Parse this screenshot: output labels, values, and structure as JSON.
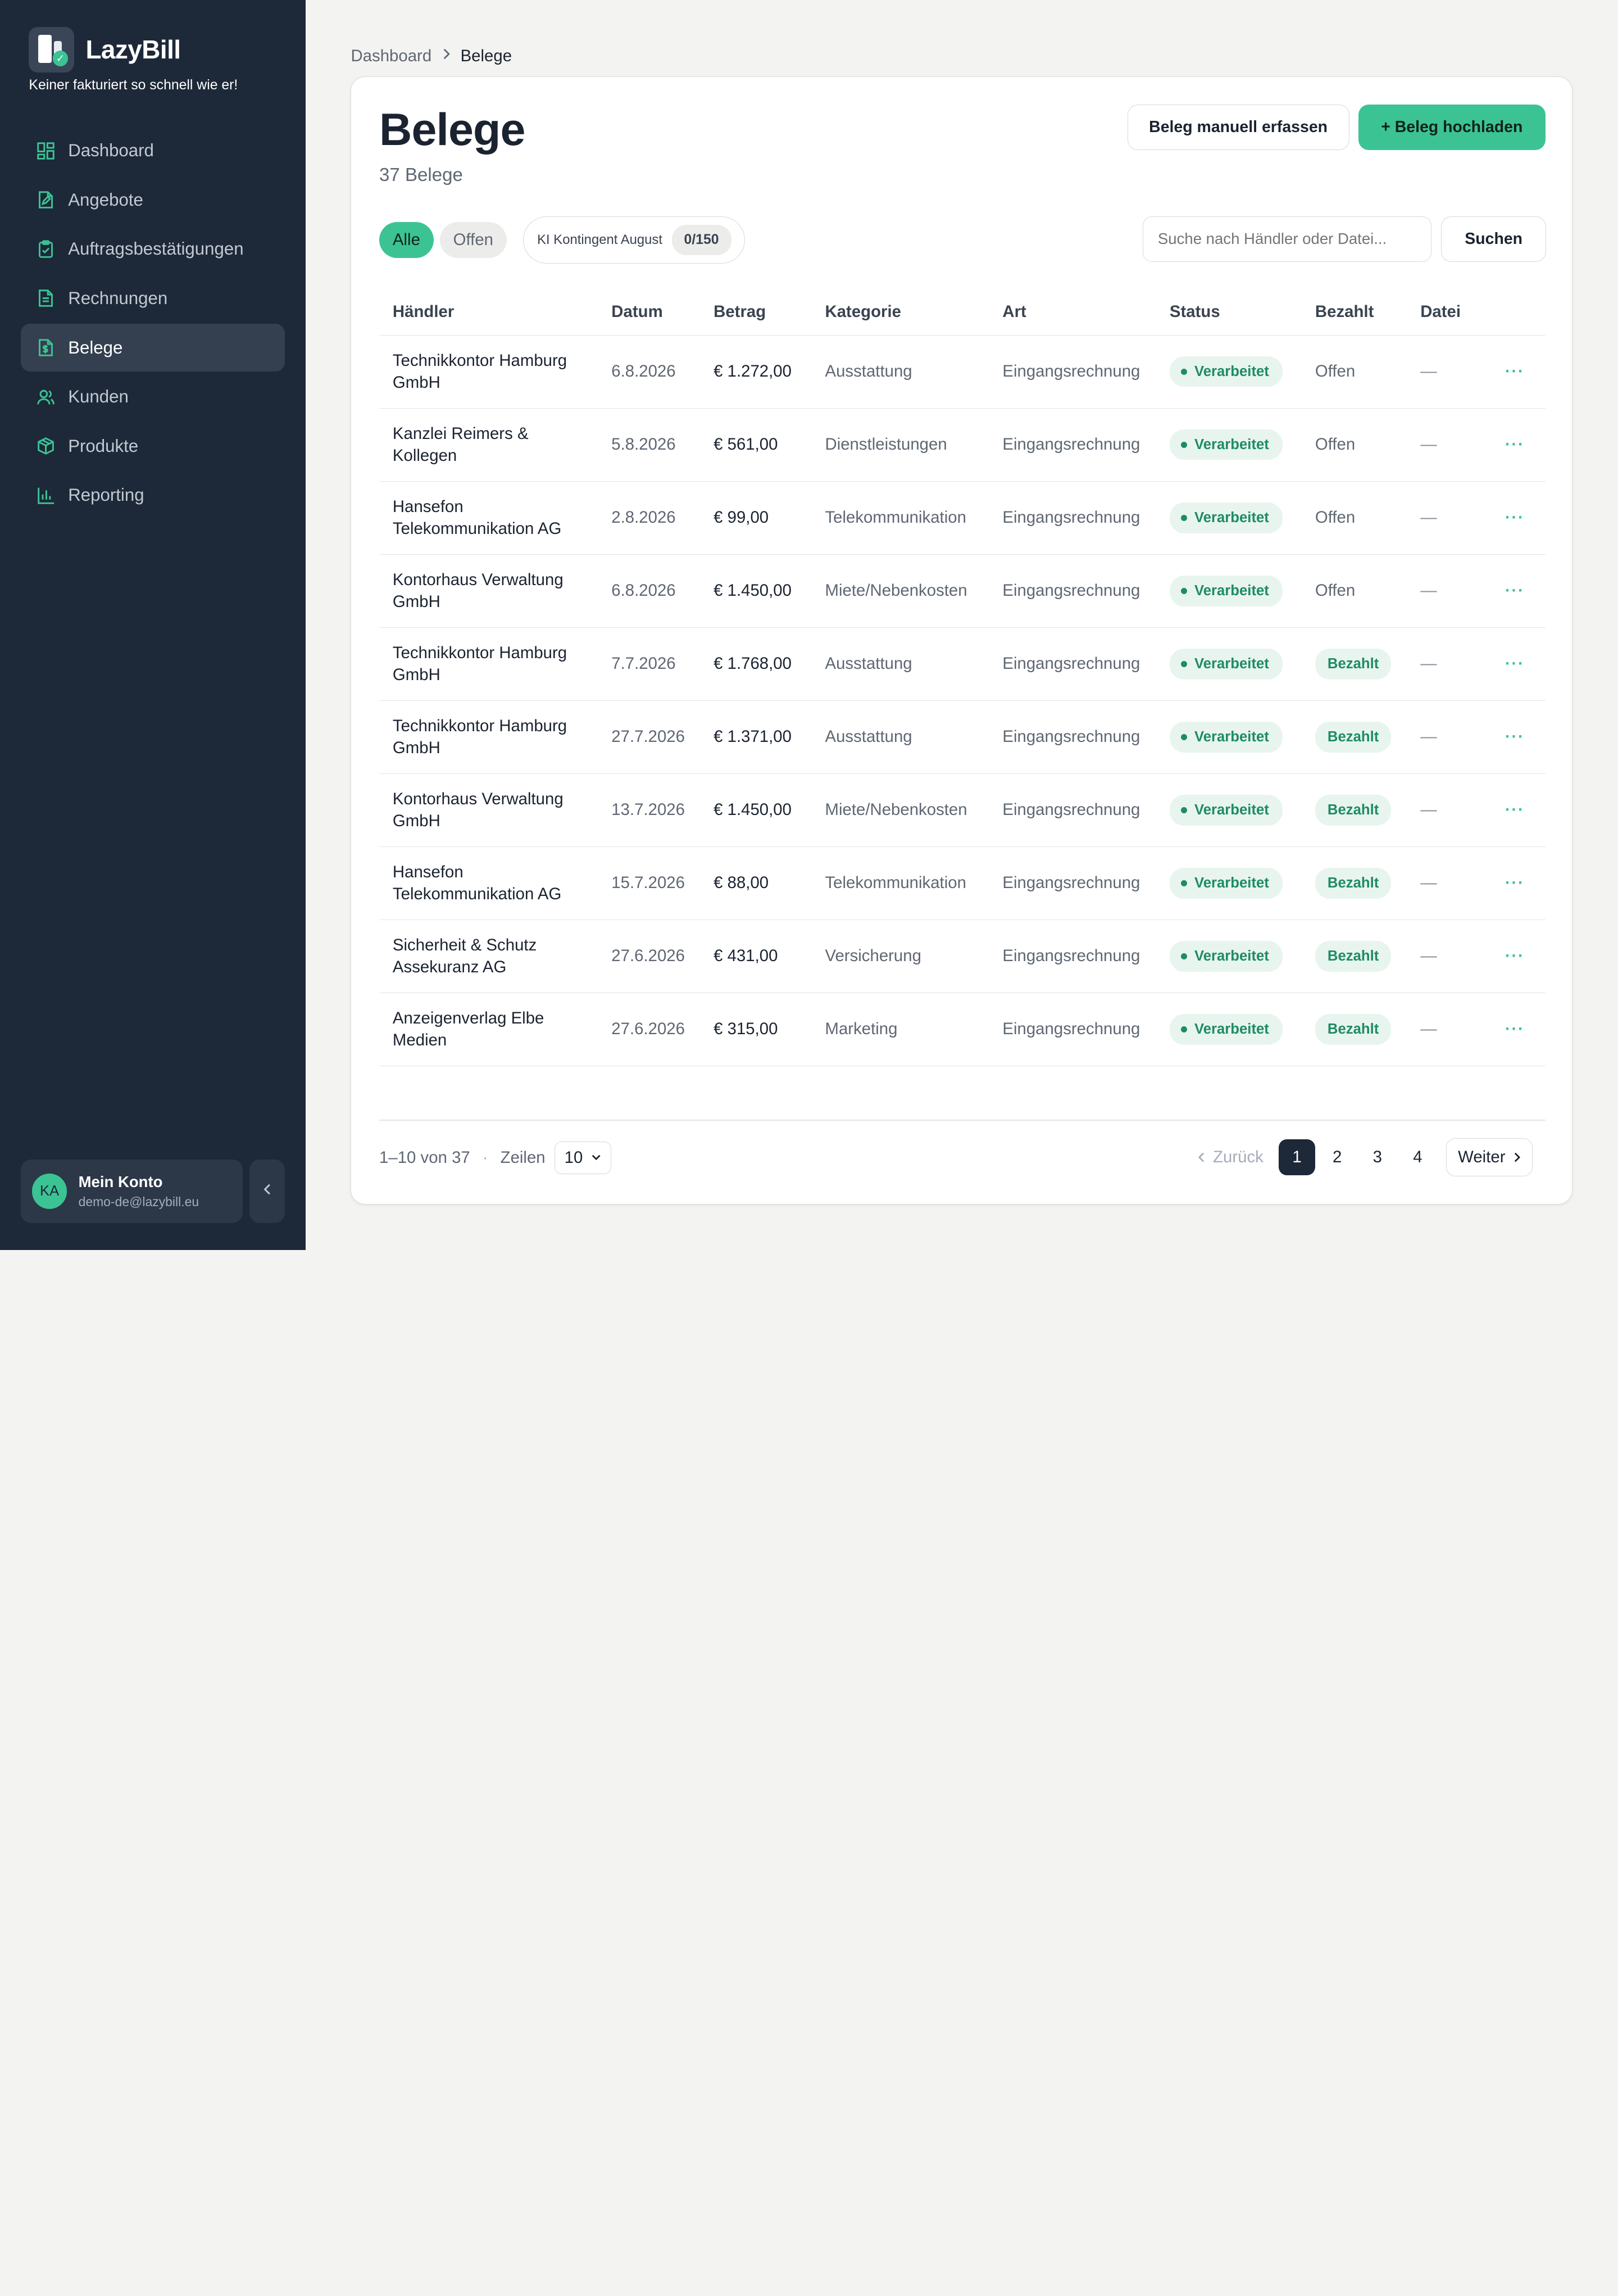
{
  "app": {
    "name": "LazyBill",
    "tagline": "Keiner fakturiert so schnell wie er!"
  },
  "sidebar": {
    "items": [
      {
        "label": "Dashboard",
        "icon": "dashboard-icon"
      },
      {
        "label": "Angebote",
        "icon": "file-edit-icon"
      },
      {
        "label": "Auftragsbestätigungen",
        "icon": "clipboard-check-icon"
      },
      {
        "label": "Rechnungen",
        "icon": "file-text-icon"
      },
      {
        "label": "Belege",
        "icon": "receipt-icon",
        "active": true
      },
      {
        "label": "Kunden",
        "icon": "users-icon"
      },
      {
        "label": "Produkte",
        "icon": "box-icon"
      },
      {
        "label": "Reporting",
        "icon": "bar-chart-icon"
      }
    ],
    "account": {
      "initials": "KA",
      "name": "Mein Konto",
      "email": "demo-de@lazybill.eu"
    }
  },
  "breadcrumb": {
    "parent": "Dashboard",
    "current": "Belege"
  },
  "page": {
    "title": "Belege",
    "count": "37 Belege",
    "manual_button": "Beleg manuell erfassen",
    "upload_button": "+ Beleg hochladen"
  },
  "filters": {
    "all": "Alle",
    "open": "Offen",
    "quota_label": "KI Kontingent August",
    "quota_value": "0/150"
  },
  "search": {
    "placeholder": "Suche nach Händler oder Datei...",
    "button": "Suchen"
  },
  "table": {
    "headers": [
      "Händler",
      "Datum",
      "Betrag",
      "Kategorie",
      "Art",
      "Status",
      "Bezahlt",
      "Datei"
    ],
    "rows": [
      {
        "merchant_line1": "Technikkontor Hamburg",
        "merchant_line2": "GmbH",
        "date": "6.8.2026",
        "amount": "€ 1.272,00",
        "category": "Ausstattung",
        "art": "Eingangsrechnung",
        "status": "Verarbeitet",
        "paid": "Offen",
        "file": "—"
      },
      {
        "merchant_line1": "Kanzlei Reimers &",
        "merchant_line2": "Kollegen",
        "date": "5.8.2026",
        "amount": "€ 561,00",
        "category": "Dienstleistungen",
        "art": "Eingangsrechnung",
        "status": "Verarbeitet",
        "paid": "Offen",
        "file": "—"
      },
      {
        "merchant_line1": "Hansefon",
        "merchant_line2": "Telekommunikation AG",
        "date": "2.8.2026",
        "amount": "€ 99,00",
        "category": "Telekommunikation",
        "art": "Eingangsrechnung",
        "status": "Verarbeitet",
        "paid": "Offen",
        "file": "—"
      },
      {
        "merchant_line1": "Kontorhaus Verwaltung",
        "merchant_line2": "GmbH",
        "date": "6.8.2026",
        "amount": "€ 1.450,00",
        "category": "Miete/Nebenkosten",
        "art": "Eingangsrechnung",
        "status": "Verarbeitet",
        "paid": "Offen",
        "file": "—"
      },
      {
        "merchant_line1": "Technikkontor Hamburg",
        "merchant_line2": "GmbH",
        "date": "7.7.2026",
        "amount": "€ 1.768,00",
        "category": "Ausstattung",
        "art": "Eingangsrechnung",
        "status": "Verarbeitet",
        "paid": "Bezahlt",
        "file": "—"
      },
      {
        "merchant_line1": "Technikkontor Hamburg",
        "merchant_line2": "GmbH",
        "date": "27.7.2026",
        "amount": "€ 1.371,00",
        "category": "Ausstattung",
        "art": "Eingangsrechnung",
        "status": "Verarbeitet",
        "paid": "Bezahlt",
        "file": "—"
      },
      {
        "merchant_line1": "Kontorhaus Verwaltung",
        "merchant_line2": "GmbH",
        "date": "13.7.2026",
        "amount": "€ 1.450,00",
        "category": "Miete/Nebenkosten",
        "art": "Eingangsrechnung",
        "status": "Verarbeitet",
        "paid": "Bezahlt",
        "file": "—"
      },
      {
        "merchant_line1": "Hansefon",
        "merchant_line2": "Telekommunikation AG",
        "date": "15.7.2026",
        "amount": "€ 88,00",
        "category": "Telekommunikation",
        "art": "Eingangsrechnung",
        "status": "Verarbeitet",
        "paid": "Bezahlt",
        "file": "—"
      },
      {
        "merchant_line1": "Sicherheit & Schutz",
        "merchant_line2": "Assekuranz AG",
        "date": "27.6.2026",
        "amount": "€ 431,00",
        "category": "Versicherung",
        "art": "Eingangsrechnung",
        "status": "Verarbeitet",
        "paid": "Bezahlt",
        "file": "—"
      },
      {
        "merchant_line1": "Anzeigenverlag Elbe",
        "merchant_line2": "Medien",
        "date": "27.6.2026",
        "amount": "€ 315,00",
        "category": "Marketing",
        "art": "Eingangsrechnung",
        "status": "Verarbeitet",
        "paid": "Bezahlt",
        "file": "—"
      }
    ]
  },
  "pagination": {
    "range": "1–10 von 37",
    "rows_label": "Zeilen",
    "rows_value": "10",
    "prev": "Zurück",
    "pages": [
      "1",
      "2",
      "3",
      "4"
    ],
    "current_page": "1",
    "next": "Weiter"
  },
  "colors": {
    "sidebar_bg": "#1d2838",
    "accent": "#3cc394",
    "status_text": "#1e8c62"
  }
}
